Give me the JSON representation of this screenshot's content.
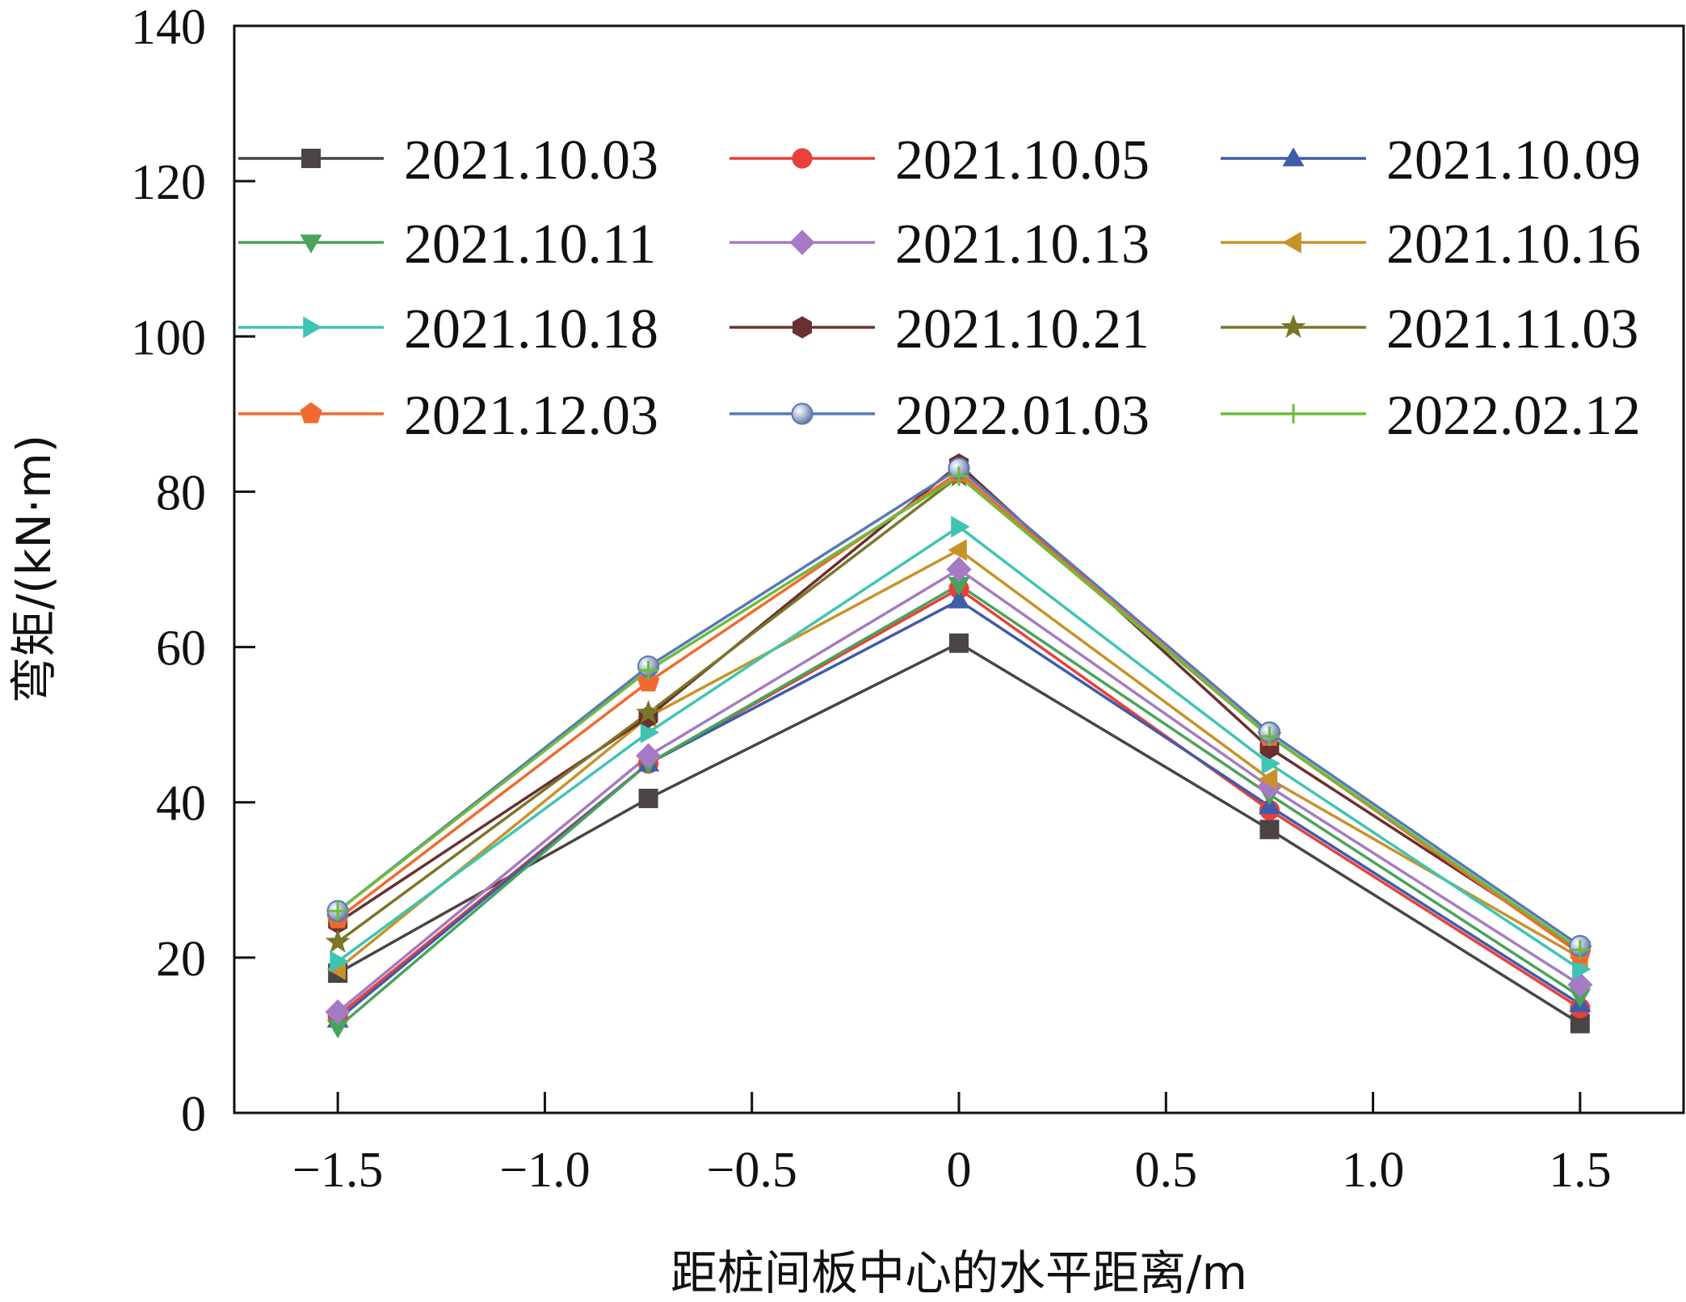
{
  "chart_data": {
    "type": "line",
    "title": "",
    "xlabel": "距桩间板中心的水平距离/m",
    "ylabel": "弯矩/(kN·m)",
    "xlim": [
      -1.75,
      1.75
    ],
    "ylim": [
      0,
      140
    ],
    "xticks": [
      -1.5,
      -1.0,
      -0.5,
      0,
      0.5,
      1.0,
      1.5
    ],
    "xtick_labels": [
      "−1.5",
      "−1.0",
      "−0.5",
      "0",
      "0.5",
      "1.0",
      "1.5"
    ],
    "yticks": [
      0,
      20,
      40,
      60,
      80,
      100,
      120,
      140
    ],
    "ytick_labels": [
      "0",
      "20",
      "40",
      "60",
      "80",
      "100",
      "120",
      "140"
    ],
    "grid": false,
    "legend_position": "top",
    "x": [
      -1.5,
      -0.75,
      0,
      0.75,
      1.5
    ],
    "series": [
      {
        "name": "2021.10.03",
        "color": "#4a4444",
        "marker": "square",
        "values": [
          18.0,
          40.5,
          60.5,
          36.5,
          11.5
        ]
      },
      {
        "name": "2021.10.05",
        "color": "#e8403c",
        "marker": "circle",
        "values": [
          12.5,
          45.0,
          67.5,
          39.0,
          13.5
        ]
      },
      {
        "name": "2021.10.09",
        "color": "#3f5ca8",
        "marker": "triangle-up",
        "values": [
          12.0,
          45.0,
          66.0,
          39.5,
          14.0
        ]
      },
      {
        "name": "2021.10.11",
        "color": "#4aa35a",
        "marker": "triangle-down",
        "values": [
          11.0,
          45.0,
          68.0,
          41.0,
          15.0
        ]
      },
      {
        "name": "2021.10.13",
        "color": "#a57bc4",
        "marker": "diamond",
        "values": [
          13.0,
          46.0,
          70.0,
          42.0,
          16.5
        ]
      },
      {
        "name": "2021.10.16",
        "color": "#c8922a",
        "marker": "triangle-left",
        "values": [
          18.5,
          51.0,
          72.5,
          43.0,
          20.0
        ]
      },
      {
        "name": "2021.10.18",
        "color": "#3fc4b4",
        "marker": "triangle-right",
        "values": [
          19.5,
          49.0,
          75.5,
          45.0,
          18.5
        ]
      },
      {
        "name": "2021.10.21",
        "color": "#6a3030",
        "marker": "hexagon",
        "values": [
          24.5,
          51.0,
          83.5,
          47.0,
          21.0
        ]
      },
      {
        "name": "2021.11.03",
        "color": "#7a7628",
        "marker": "star",
        "values": [
          22.0,
          51.5,
          82.0,
          48.5,
          21.0
        ]
      },
      {
        "name": "2021.12.03",
        "color": "#f06a30",
        "marker": "pentagon",
        "values": [
          25.0,
          55.5,
          82.5,
          48.5,
          20.5
        ]
      },
      {
        "name": "2022.01.03",
        "color": "#5878b8",
        "marker": "sphere",
        "values": [
          26.0,
          57.5,
          83.0,
          49.0,
          21.5
        ]
      },
      {
        "name": "2022.02.12",
        "color": "#6cbc3a",
        "marker": "plus",
        "values": [
          26.0,
          57.0,
          82.0,
          48.5,
          21.0
        ]
      }
    ]
  }
}
